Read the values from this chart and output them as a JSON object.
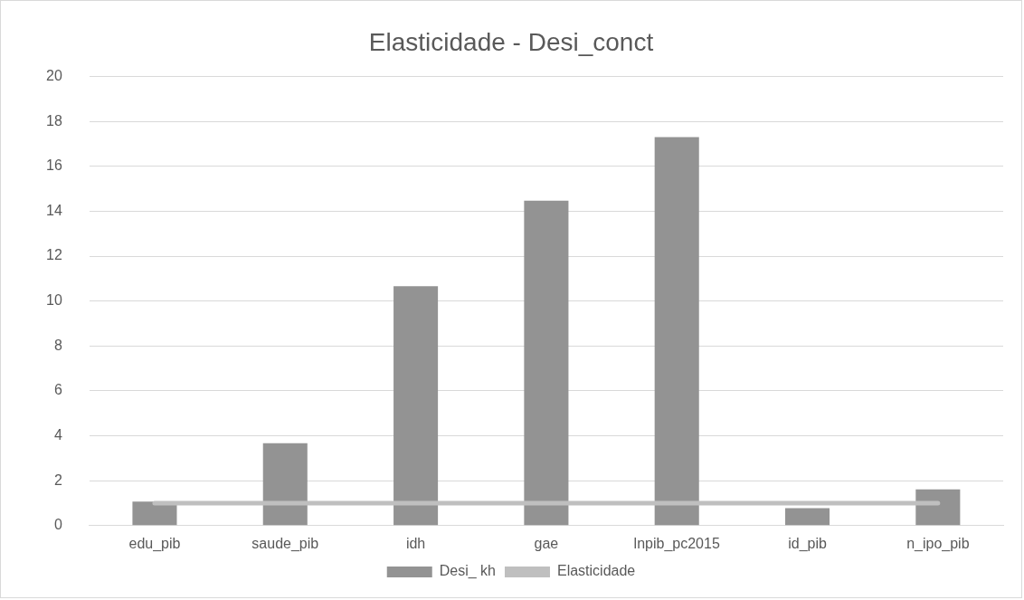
{
  "chart_data": {
    "type": "bar",
    "title": "Elasticidade - Desi_conct",
    "categories": [
      "edu_pib",
      "saude_pib",
      "idh",
      "gae",
      "lnpib_pc2015",
      "id_pib",
      "n_ipo_pib"
    ],
    "series": [
      {
        "name": "Desi_ kh",
        "color": "#939393",
        "values": [
          1.07,
          3.67,
          10.66,
          14.47,
          17.3,
          0.78,
          1.61
        ]
      },
      {
        "name": "Elasticidade",
        "type": "line",
        "color": "#bfbfbf",
        "values": [
          1,
          1,
          1,
          1,
          1,
          1,
          1
        ]
      }
    ],
    "ylim": [
      0,
      20
    ],
    "yticks": [
      0,
      2,
      4,
      6,
      8,
      10,
      12,
      14,
      16,
      18,
      20
    ],
    "grid": "y",
    "legend": "bottom",
    "marker": "none",
    "line_style": "solid"
  }
}
